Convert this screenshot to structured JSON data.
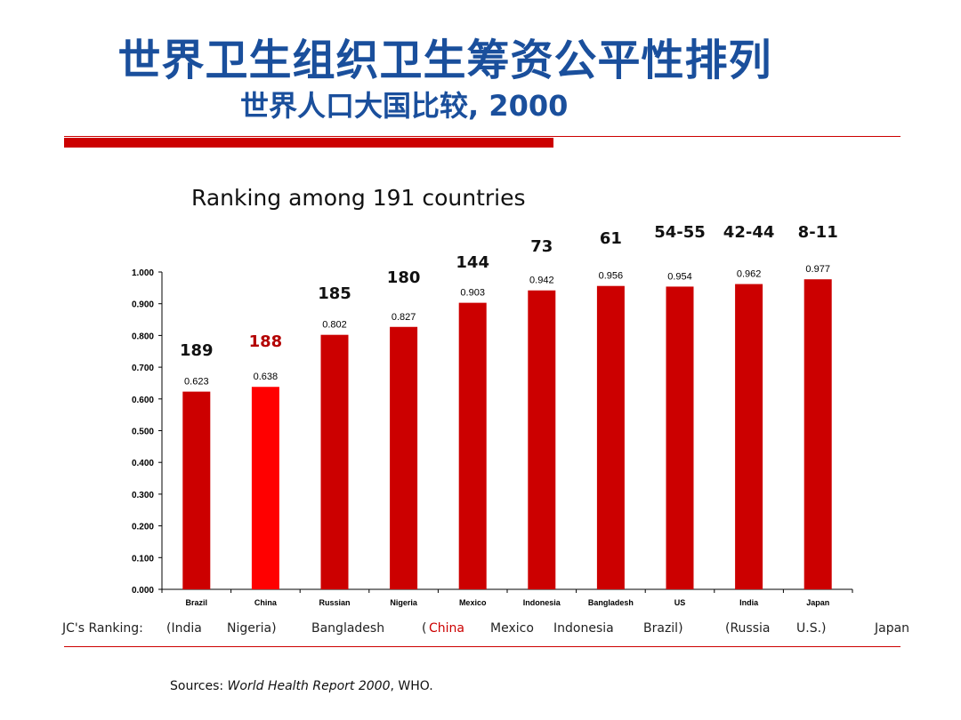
{
  "slide": {
    "title": "世界卫生组织卫生筹资公平性排列",
    "subtitle": "世界人口大国比较, 2000"
  },
  "chart_data": {
    "type": "bar",
    "title": "Ranking among 191 countries",
    "categories": [
      "Brazil",
      "China",
      "Russian",
      "Nigeria",
      "Mexico",
      "Indonesia",
      "Bangladesh",
      "US",
      "India",
      "Japan"
    ],
    "values": [
      0.623,
      0.638,
      0.802,
      0.827,
      0.903,
      0.942,
      0.956,
      0.954,
      0.962,
      0.977
    ],
    "value_labels": [
      "0.623",
      "0.638",
      "0.802",
      "0.827",
      "0.903",
      "0.942",
      "0.956",
      "0.954",
      "0.962",
      "0.977"
    ],
    "rank_labels": [
      "189",
      "188",
      "185",
      "180",
      "144",
      "73",
      "61",
      "54-55",
      "42-44",
      "8-11"
    ],
    "highlight_index": 1,
    "colors": {
      "bar": "#cc0000",
      "highlight_bar": "#ff0000",
      "highlight_rank": "#b30000",
      "rank": "#111111"
    },
    "ylim": [
      0,
      1
    ],
    "yticks": [
      "0.000",
      "0.100",
      "0.200",
      "0.300",
      "0.400",
      "0.500",
      "0.600",
      "0.700",
      "0.800",
      "0.900",
      "1.000"
    ],
    "xlabel": "",
    "ylabel": "",
    "grid": false
  },
  "jc_ranking": {
    "label": "JC's Ranking:",
    "items": [
      "(India",
      "Nigeria)",
      "Bangladesh",
      "(",
      "China",
      "Mexico",
      "Indonesia",
      "Brazil)",
      "(Russia",
      "U.S.)",
      "Japan"
    ]
  },
  "sources": {
    "prefix": "Sources: ",
    "report": "World Health Report 2000",
    "suffix": ", WHO."
  }
}
